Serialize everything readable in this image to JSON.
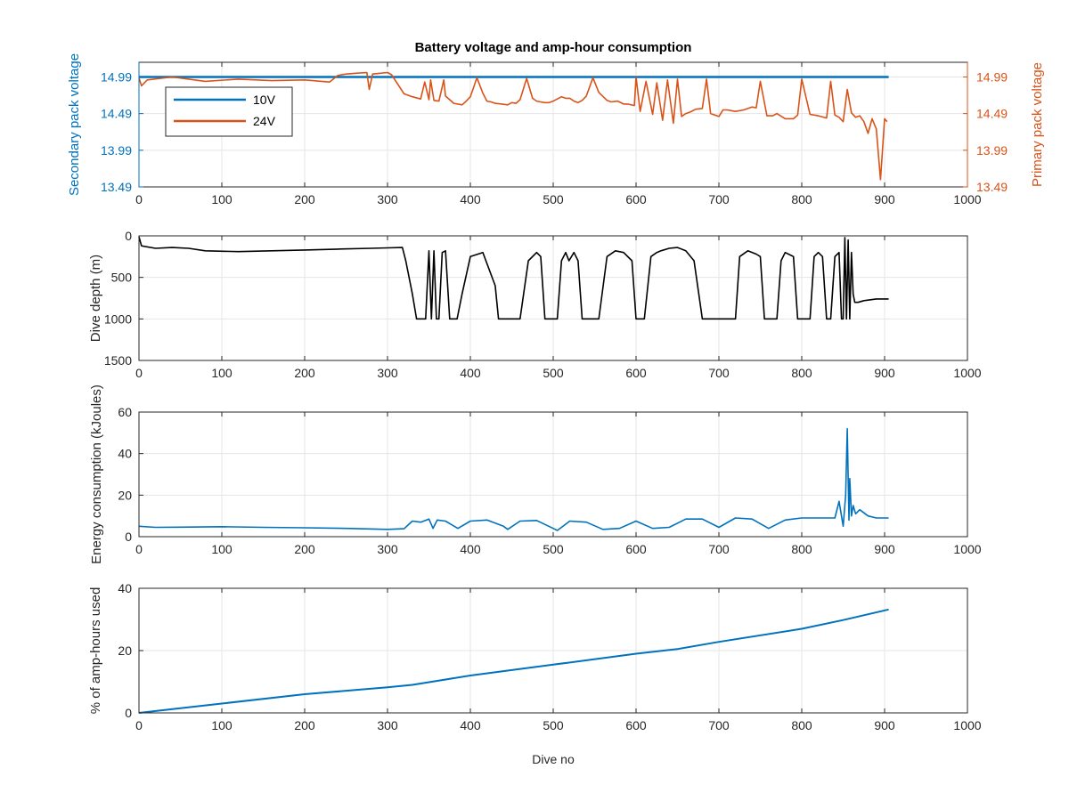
{
  "figure": {
    "title": "Battery voltage and amp-hour consumption",
    "xlabel": "Dive no"
  },
  "colors": {
    "blue": "#0072BD",
    "orange": "#D95319",
    "black": "#000000",
    "axis": "#262626",
    "grid": "#e5e5e5"
  },
  "chart_data": [
    {
      "type": "line",
      "title": "Battery voltage and amp-hour consumption",
      "xlim": [
        0,
        1000
      ],
      "xticks": [
        0,
        100,
        200,
        300,
        400,
        500,
        600,
        700,
        800,
        900,
        1000
      ],
      "ylabel_left": "Secondary pack voltage",
      "ylabel_right": "Primary pack voltage",
      "ylim": [
        13.49,
        15.19
      ],
      "yticks": [
        13.49,
        13.99,
        14.49,
        14.99
      ],
      "grid": true,
      "legend": {
        "position": "top-left",
        "entries": [
          "10V",
          "24V"
        ]
      },
      "series": [
        {
          "name": "10V",
          "axis": "left",
          "color": "blue",
          "x": [
            0,
            100,
            200,
            300,
            400,
            500,
            600,
            700,
            800,
            905
          ],
          "y": [
            14.99,
            14.99,
            14.99,
            14.99,
            14.99,
            14.99,
            14.99,
            14.99,
            14.99,
            14.99
          ]
        },
        {
          "name": "24V",
          "axis": "right",
          "color": "orange",
          "x": [
            0,
            3,
            10,
            40,
            60,
            80,
            120,
            160,
            200,
            230,
            240,
            250,
            260,
            275,
            278,
            282,
            290,
            300,
            305,
            320,
            330,
            340,
            345,
            350,
            352,
            356,
            362,
            368,
            370,
            380,
            390,
            395,
            400,
            408,
            415,
            420,
            425,
            430,
            438,
            445,
            450,
            455,
            460,
            468,
            475,
            480,
            485,
            490,
            495,
            500,
            505,
            510,
            515,
            520,
            525,
            530,
            535,
            540,
            548,
            555,
            565,
            570,
            578,
            585,
            590,
            598,
            600,
            605,
            612,
            620,
            625,
            632,
            638,
            645,
            650,
            655,
            660,
            665,
            672,
            680,
            685,
            690,
            700,
            705,
            710,
            720,
            730,
            740,
            745,
            750,
            758,
            765,
            770,
            780,
            790,
            795,
            800,
            810,
            820,
            830,
            835,
            840,
            845,
            850,
            855,
            860,
            865,
            870,
            875,
            880,
            885,
            890,
            895,
            900,
            903
          ],
          "y": [
            14.98,
            14.87,
            14.95,
            14.99,
            14.96,
            14.93,
            14.96,
            14.94,
            14.95,
            14.92,
            15.01,
            15.03,
            15.04,
            15.05,
            14.82,
            15.03,
            15.04,
            15.05,
            15.02,
            14.76,
            14.72,
            14.69,
            14.92,
            14.68,
            14.95,
            14.67,
            14.66,
            14.95,
            14.73,
            14.63,
            14.61,
            14.66,
            14.72,
            14.98,
            14.77,
            14.66,
            14.65,
            14.63,
            14.62,
            14.61,
            14.64,
            14.63,
            14.68,
            14.97,
            14.7,
            14.66,
            14.65,
            14.64,
            14.64,
            14.66,
            14.69,
            14.72,
            14.7,
            14.7,
            14.66,
            14.64,
            14.67,
            14.73,
            14.98,
            14.78,
            14.67,
            14.65,
            14.66,
            14.62,
            14.62,
            14.6,
            14.99,
            14.52,
            14.93,
            14.48,
            14.91,
            14.4,
            14.95,
            14.36,
            14.96,
            14.45,
            14.49,
            14.51,
            14.55,
            14.56,
            14.96,
            14.49,
            14.45,
            14.54,
            14.54,
            14.52,
            14.54,
            14.58,
            14.57,
            14.93,
            14.46,
            14.46,
            14.49,
            14.42,
            14.42,
            14.47,
            14.96,
            14.48,
            14.46,
            14.43,
            14.93,
            14.47,
            14.44,
            14.38,
            14.82,
            14.5,
            14.44,
            14.46,
            14.38,
            14.22,
            14.42,
            14.28,
            13.59,
            14.42,
            14.38
          ]
        }
      ]
    },
    {
      "type": "line",
      "xlim": [
        0,
        1000
      ],
      "xticks": [
        0,
        100,
        200,
        300,
        400,
        500,
        600,
        700,
        800,
        900,
        1000
      ],
      "ylabel": "Dive depth (m)",
      "ylim": [
        0,
        1500
      ],
      "y_reversed": true,
      "yticks": [
        0,
        500,
        1000,
        1500
      ],
      "grid": true,
      "series": [
        {
          "name": "",
          "color": "black",
          "x": [
            0,
            3,
            8,
            20,
            40,
            60,
            80,
            120,
            160,
            200,
            240,
            280,
            300,
            318,
            322,
            330,
            335,
            338,
            343,
            346,
            350,
            353,
            356,
            359,
            362,
            366,
            370,
            375,
            380,
            384,
            390,
            400,
            415,
            430,
            434,
            440,
            445,
            460,
            470,
            480,
            485,
            490,
            495,
            500,
            505,
            510,
            515,
            519,
            519,
            525,
            530,
            535,
            545,
            555,
            565,
            575,
            585,
            595,
            600,
            605,
            610,
            618,
            625,
            630,
            640,
            650,
            660,
            670,
            680,
            690,
            700,
            710,
            720,
            725,
            735,
            745,
            750,
            755,
            760,
            765,
            770,
            775,
            780,
            790,
            795,
            800,
            810,
            815,
            820,
            825,
            830,
            835,
            840,
            845,
            848,
            850,
            852,
            854,
            856,
            858,
            860,
            862,
            864,
            868,
            875,
            890,
            905
          ],
          "y": [
            10,
            120,
            130,
            150,
            140,
            150,
            180,
            190,
            180,
            170,
            160,
            150,
            145,
            140,
            300,
            700,
            1000,
            1000,
            1000,
            1000,
            180,
            1000,
            180,
            1000,
            1000,
            200,
            180,
            1000,
            1000,
            1000,
            700,
            250,
            200,
            600,
            1000,
            1000,
            1000,
            1000,
            300,
            200,
            250,
            1000,
            1000,
            1000,
            1000,
            300,
            200,
            300,
            300,
            200,
            300,
            1000,
            1000,
            1000,
            250,
            180,
            200,
            300,
            1000,
            1000,
            1000,
            250,
            200,
            180,
            150,
            140,
            180,
            300,
            1000,
            1000,
            1000,
            1000,
            1000,
            250,
            180,
            220,
            250,
            1000,
            1000,
            1000,
            1000,
            300,
            200,
            250,
            1000,
            1000,
            1000,
            250,
            200,
            250,
            1000,
            1000,
            250,
            200,
            1000,
            1000,
            20,
            1000,
            50,
            1000,
            200,
            700,
            800,
            800,
            780,
            760,
            760
          ]
        }
      ]
    },
    {
      "type": "line",
      "xlim": [
        0,
        1000
      ],
      "xticks": [
        0,
        100,
        200,
        300,
        400,
        500,
        600,
        700,
        800,
        900,
        1000
      ],
      "ylabel": "Energy consumption (kJoules)",
      "ylim": [
        0,
        60
      ],
      "yticks": [
        0,
        20,
        40,
        60
      ],
      "grid": true,
      "series": [
        {
          "name": "",
          "color": "blue",
          "x": [
            0,
            20,
            50,
            100,
            150,
            200,
            250,
            300,
            320,
            330,
            340,
            350,
            355,
            360,
            370,
            385,
            400,
            420,
            440,
            445,
            460,
            480,
            500,
            505,
            520,
            540,
            560,
            580,
            600,
            620,
            640,
            660,
            680,
            700,
            720,
            740,
            760,
            780,
            800,
            820,
            840,
            845,
            850,
            853,
            855,
            857,
            858,
            860,
            862,
            865,
            870,
            880,
            890,
            905
          ],
          "y": [
            5,
            4.5,
            4.6,
            4.8,
            4.5,
            4.3,
            4.0,
            3.5,
            3.8,
            7.5,
            7.0,
            8.5,
            4.0,
            8.0,
            7.5,
            4.0,
            7.5,
            8.0,
            5.0,
            3.5,
            7.5,
            7.8,
            4.0,
            3.0,
            7.5,
            7.0,
            3.5,
            4.0,
            7.5,
            4.0,
            4.5,
            8.5,
            8.5,
            4.5,
            9.0,
            8.5,
            4.0,
            8.0,
            9.0,
            9.0,
            9.0,
            17.0,
            5.0,
            20.0,
            52.0,
            8.0,
            28.0,
            10.0,
            15.0,
            11.0,
            13.0,
            10.0,
            9.0,
            9.0
          ]
        }
      ]
    },
    {
      "type": "line",
      "xlim": [
        0,
        1000
      ],
      "xticks": [
        0,
        100,
        200,
        300,
        400,
        500,
        600,
        700,
        800,
        900,
        1000
      ],
      "ylabel": "% of amp-hours used",
      "xlabel": "Dive no",
      "ylim": [
        0,
        40
      ],
      "yticks": [
        0,
        20,
        40
      ],
      "grid": true,
      "series": [
        {
          "name": "",
          "color": "blue",
          "x": [
            0,
            100,
            200,
            300,
            330,
            400,
            500,
            600,
            650,
            700,
            800,
            850,
            905
          ],
          "y": [
            0,
            3.0,
            6.0,
            8.2,
            9.0,
            12.0,
            15.5,
            19.0,
            20.5,
            22.8,
            27.0,
            29.8,
            33.2
          ]
        }
      ]
    }
  ]
}
